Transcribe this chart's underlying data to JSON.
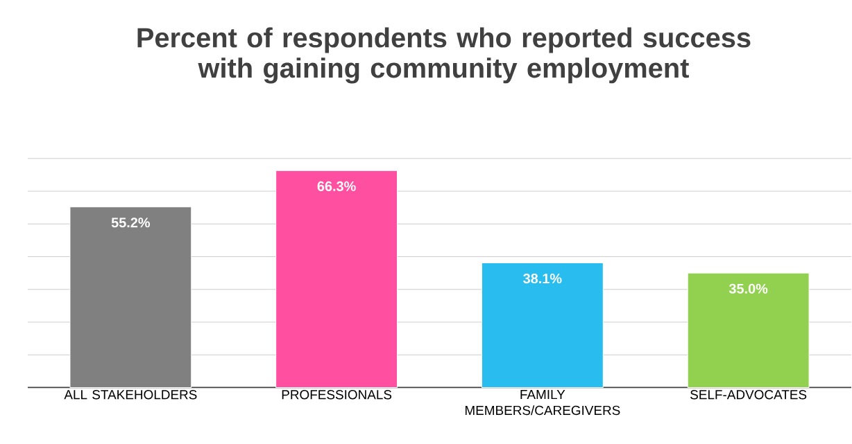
{
  "chart_data": {
    "type": "bar",
    "title": "Percent of respondents who reported success with gaining community employment",
    "categories": [
      "ALL STAKEHOLDERS",
      "PROFESSIONALS",
      "FAMILY MEMBERS/CAREGIVERS",
      "SELF-ADVOCATES"
    ],
    "values": [
      55.2,
      66.3,
      38.1,
      35.0
    ],
    "colors": [
      "#808080",
      "#ff4fa0",
      "#29bdef",
      "#92d050"
    ],
    "value_labels": [
      "55.2%",
      "66.3%",
      "38.1%",
      "35.0%"
    ],
    "ylim": [
      0,
      70
    ],
    "yticks": [
      {
        "value": 0,
        "label": null
      },
      {
        "value": 10,
        "label": null
      },
      {
        "value": 20,
        "label": null
      },
      {
        "value": 30,
        "label": null
      },
      {
        "value": 40,
        "label": null
      },
      {
        "value": 50,
        "label": null
      },
      {
        "value": 60,
        "label": null
      },
      {
        "value": 70,
        "label": null
      }
    ],
    "grid": "y",
    "tick_labels": "x"
  }
}
